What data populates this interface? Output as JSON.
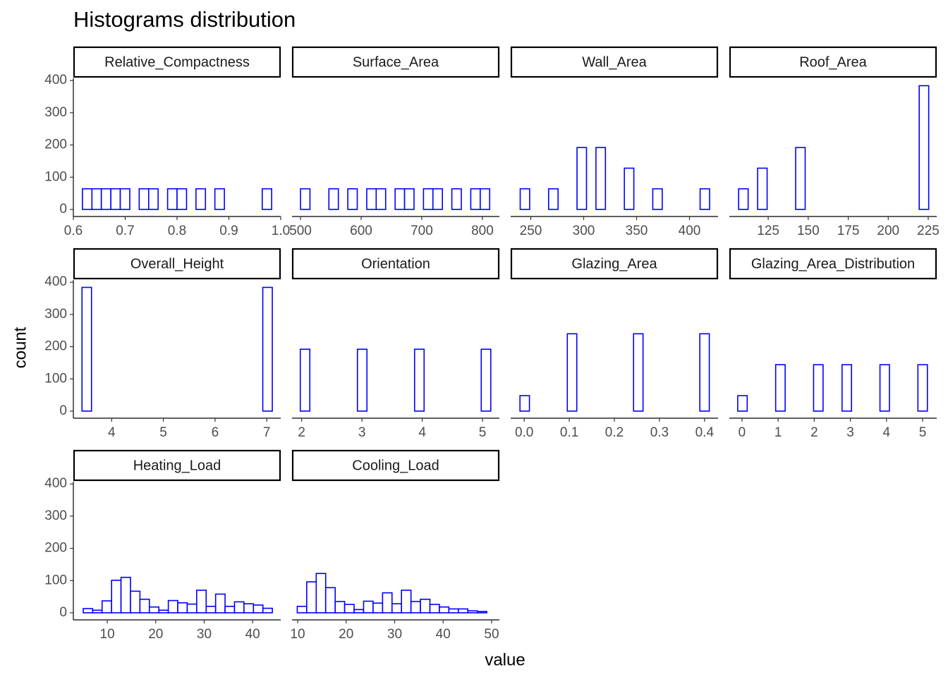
{
  "title": "Histograms distribution",
  "x_label": "value",
  "y_label": "count",
  "ylim": [
    -22,
    407
  ],
  "yticks": [
    0,
    100,
    200,
    300,
    400
  ],
  "chart_data": [
    {
      "type": "histogram",
      "title": "Relative_Compactness",
      "color": "#0000ff",
      "bins": [
        0.6175,
        0.6358,
        0.654,
        0.6723,
        0.6905,
        0.7088,
        0.727,
        0.7453,
        0.7635,
        0.7818,
        0.8,
        0.8183,
        0.8365,
        0.8548,
        0.873,
        0.8913,
        0.9095,
        0.9278,
        0.946,
        0.9643,
        0.9825
      ],
      "values": [
        64,
        64,
        64,
        64,
        64,
        0,
        64,
        64,
        0,
        64,
        64,
        0,
        64,
        0,
        64,
        0,
        0,
        0,
        0,
        64
      ],
      "xlim": [
        0.6,
        1.0
      ],
      "xticks": [
        0.6,
        0.7,
        0.8,
        0.9,
        {
          "value": 1.0,
          "label": "1.0"
        }
      ]
    },
    {
      "type": "histogram",
      "title": "Surface_Area",
      "color": "#0000ff",
      "bins": [
        500,
        515.6,
        531.2,
        546.8,
        562.4,
        578,
        593.6,
        609.2,
        624.8,
        640.4,
        656,
        671.6,
        687.2,
        702.8,
        718.4,
        734,
        749.6,
        765.2,
        780.8,
        796.4,
        812
      ],
      "values": [
        64,
        0,
        0,
        64,
        0,
        64,
        0,
        64,
        64,
        0,
        64,
        64,
        0,
        64,
        64,
        0,
        64,
        0,
        64,
        64
      ],
      "xlim": [
        486,
        828
      ],
      "xticks": [
        500,
        600,
        700,
        800
      ]
    },
    {
      "type": "histogram",
      "title": "Wall_Area",
      "color": "#0000ff",
      "bins": [
        240,
        248.95,
        257.9,
        266.85,
        275.8,
        284.75,
        293.7,
        302.65,
        311.6,
        320.55,
        329.5,
        338.45,
        347.4,
        356.35,
        365.3,
        374.25,
        383.2,
        392.15,
        401.1,
        410.05,
        419
      ],
      "values": [
        64,
        0,
        0,
        64,
        0,
        0,
        192,
        0,
        192,
        0,
        0,
        128,
        0,
        0,
        64,
        0,
        0,
        0,
        0,
        64
      ],
      "xlim": [
        231,
        427
      ],
      "xticks": [
        250,
        300,
        350,
        400
      ]
    },
    {
      "type": "histogram",
      "title": "Roof_Area",
      "color": "#0000ff",
      "bins": [
        106.5,
        112.44,
        118.38,
        124.32,
        130.26,
        136.2,
        142.14,
        148.08,
        154.02,
        159.96,
        165.9,
        171.84,
        177.78,
        183.72,
        189.66,
        195.6,
        201.54,
        207.48,
        213.42,
        219.36,
        225.3
      ],
      "values": [
        64,
        0,
        128,
        0,
        0,
        0,
        192,
        0,
        0,
        0,
        0,
        0,
        0,
        0,
        0,
        0,
        0,
        0,
        0,
        384
      ],
      "xlim": [
        100.7,
        230.3
      ],
      "xticks": [
        125,
        150,
        175,
        200,
        225
      ]
    },
    {
      "type": "histogram",
      "title": "Overall_Height",
      "color": "#0000ff",
      "bins": [
        3.427,
        3.611,
        3.795,
        3.979,
        4.163,
        4.347,
        4.531,
        4.715,
        4.899,
        5.083,
        5.267,
        5.451,
        5.635,
        5.819,
        6.003,
        6.187,
        6.371,
        6.555,
        6.739,
        6.923,
        7.107
      ],
      "values": [
        384,
        0,
        0,
        0,
        0,
        0,
        0,
        0,
        0,
        0,
        0,
        0,
        0,
        0,
        0,
        0,
        0,
        0,
        0,
        384
      ],
      "xlim": [
        3.26,
        7.27
      ],
      "xticks": [
        4,
        5,
        6,
        7
      ]
    },
    {
      "type": "histogram",
      "title": "Orientation",
      "color": "#0000ff",
      "bins": [
        1.977,
        2.135,
        2.293,
        2.451,
        2.609,
        2.767,
        2.925,
        3.083,
        3.241,
        3.399,
        3.557,
        3.715,
        3.873,
        4.031,
        4.189,
        4.347,
        4.505,
        4.663,
        4.821,
        4.979,
        5.137
      ],
      "values": [
        192,
        0,
        0,
        0,
        0,
        0,
        192,
        0,
        0,
        0,
        0,
        0,
        192,
        0,
        0,
        0,
        0,
        0,
        0,
        192
      ],
      "xlim": [
        1.84,
        5.28
      ],
      "xticks": [
        2,
        3,
        4,
        5
      ]
    },
    {
      "type": "histogram",
      "title": "Glazing_Area",
      "color": "#0000ff",
      "bins": [
        -0.0094,
        0.0116,
        0.0326,
        0.0536,
        0.0746,
        0.0956,
        0.1166,
        0.1376,
        0.1586,
        0.1796,
        0.2006,
        0.2216,
        0.2426,
        0.2636,
        0.2846,
        0.3056,
        0.3266,
        0.3476,
        0.3686,
        0.3896,
        0.4106
      ],
      "values": [
        48,
        0,
        0,
        0,
        0,
        240,
        0,
        0,
        0,
        0,
        0,
        0,
        240,
        0,
        0,
        0,
        0,
        0,
        0,
        240
      ],
      "xlim": [
        -0.03,
        0.43
      ],
      "xticks": [
        {
          "value": 0,
          "label": "0.0"
        },
        0.1,
        0.2,
        0.3,
        0.4
      ]
    },
    {
      "type": "histogram",
      "title": "Glazing_Area_Distribution",
      "color": "#0000ff",
      "bins": [
        -0.118,
        0.1445,
        0.407,
        0.6695,
        0.932,
        1.1945,
        1.457,
        1.7195,
        1.982,
        2.2445,
        2.507,
        2.7695,
        3.032,
        3.2945,
        3.557,
        3.8195,
        4.082,
        4.3445,
        4.607,
        4.8695,
        5.132
      ],
      "values": [
        48,
        0,
        0,
        0,
        144,
        0,
        0,
        0,
        144,
        0,
        0,
        144,
        0,
        0,
        0,
        144,
        0,
        0,
        0,
        144
      ],
      "xlim": [
        -0.35,
        5.39
      ],
      "xticks": [
        0,
        1,
        2,
        3,
        4,
        5
      ]
    },
    {
      "type": "histogram",
      "title": "Heating_Load",
      "color": "#0000ff",
      "bins": [
        5.03,
        6.98,
        8.93,
        10.89,
        12.84,
        14.79,
        16.74,
        18.69,
        20.65,
        22.6,
        24.55,
        26.5,
        28.45,
        30.41,
        32.36,
        34.31,
        36.26,
        38.21,
        40.17,
        42.12,
        44.07
      ],
      "values": [
        13,
        8,
        37,
        101,
        110,
        67,
        42,
        18,
        8,
        38,
        31,
        27,
        70,
        20,
        58,
        20,
        34,
        28,
        24,
        14
      ],
      "xlim": [
        3.0,
        45.8
      ],
      "xticks": [
        10,
        20,
        30,
        40
      ]
    },
    {
      "type": "histogram",
      "title": "Cooling_Load",
      "color": "#0000ff",
      "bins": [
        9.92,
        11.87,
        13.83,
        15.78,
        17.74,
        19.69,
        21.64,
        23.6,
        25.55,
        27.51,
        29.46,
        31.41,
        33.37,
        35.32,
        37.28,
        39.23,
        41.18,
        43.14,
        45.09,
        47.05,
        49.0
      ],
      "values": [
        20,
        96,
        122,
        78,
        35,
        26,
        10,
        36,
        30,
        62,
        28,
        70,
        35,
        42,
        26,
        18,
        12,
        12,
        6,
        4
      ],
      "xlim": [
        8.84,
        51.6
      ],
      "xticks": [
        10,
        20,
        30,
        40,
        50
      ]
    }
  ]
}
